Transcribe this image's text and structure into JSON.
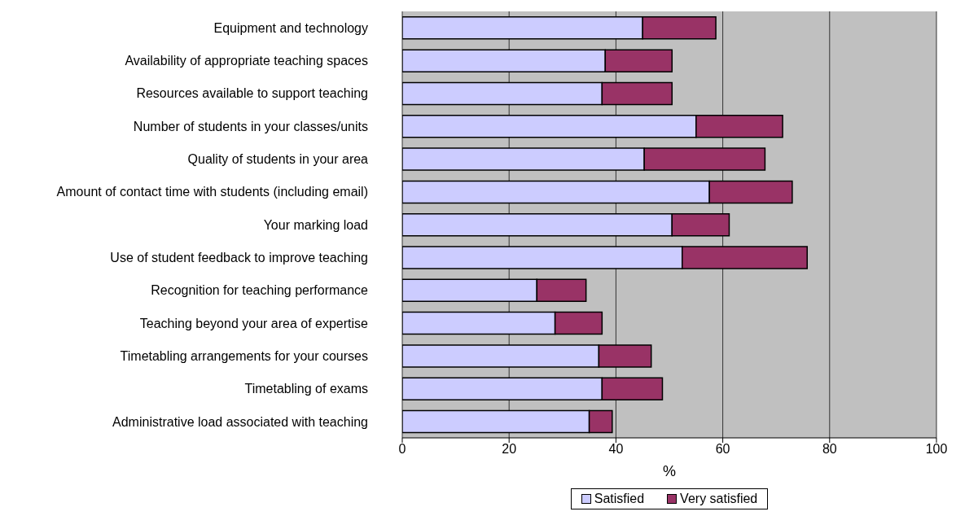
{
  "chart_data": {
    "type": "bar",
    "orientation": "horizontal",
    "stacked": true,
    "xlabel": "%",
    "categories": [
      "Equipment and technology",
      "Availability of appropriate teaching spaces",
      "Resources available to support teaching",
      "Number of students in your classes/units",
      "Quality of students in your area",
      "Amount of contact time with students (including email)",
      "Your marking load",
      "Use of student feedback to improve teaching",
      "Recognition for teaching performance",
      "Teaching beyond your area of expertise",
      "Timetabling arrangements for your courses",
      "Timetabling of exams",
      "Administrative load associated with teaching"
    ],
    "series": [
      {
        "name": "Satisfied",
        "color": "#ccccff",
        "values": [
          45,
          38,
          37.4,
          55,
          45.3,
          57.5,
          50.5,
          52.4,
          25.2,
          28.6,
          36.8,
          37.4,
          35
        ]
      },
      {
        "name": "Very satisfied",
        "color": "#993366",
        "values": [
          13.7,
          12.5,
          13.1,
          16.2,
          22.6,
          15.5,
          10.7,
          23.4,
          9.2,
          8.8,
          9.8,
          11.3,
          4.3
        ]
      }
    ],
    "xlim": [
      0,
      100
    ],
    "xticks": [
      0,
      20,
      40,
      60,
      80,
      100
    ],
    "grid": "x",
    "legend": "bottom"
  }
}
